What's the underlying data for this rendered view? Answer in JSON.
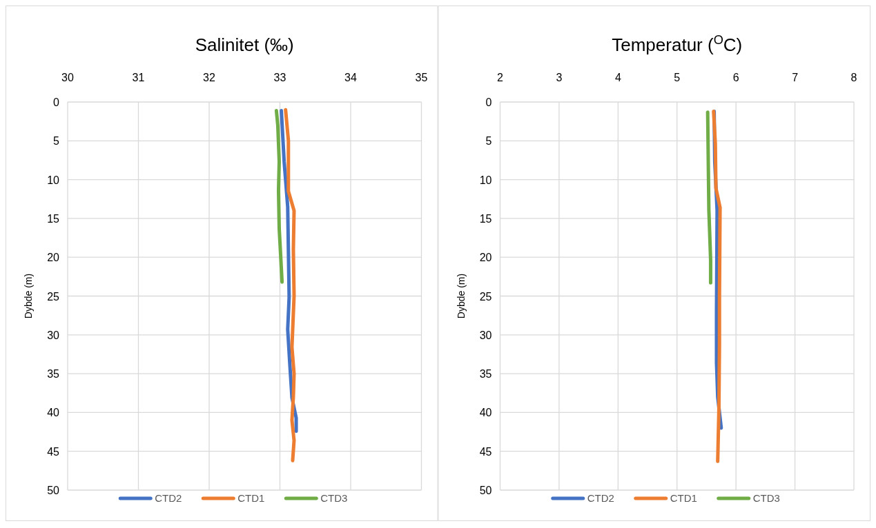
{
  "chart_data": [
    {
      "type": "line",
      "title": "Salinitet (‰)",
      "ylabel": "Dybde (m)",
      "xlim": [
        30,
        35
      ],
      "xticks": [
        30,
        31,
        32,
        33,
        34,
        35
      ],
      "ylim": [
        50,
        0
      ],
      "yticks": [
        0,
        5,
        10,
        15,
        20,
        25,
        30,
        35,
        40,
        45,
        50
      ],
      "grid": true,
      "legend": "bottom",
      "series": [
        {
          "name": "CTD2",
          "color": "#4472c4",
          "x": [
            33.02,
            33.06,
            33.11,
            33.12,
            33.13,
            33.13,
            33.11,
            33.14,
            33.17,
            33.23,
            33.23
          ],
          "values": [
            1.1,
            7.7,
            13.5,
            19.2,
            25,
            25.2,
            29.3,
            33.8,
            38.1,
            40.7,
            42.4
          ]
        },
        {
          "name": "CTD1",
          "color": "#ed7d31",
          "x": [
            33.08,
            33.12,
            33.12,
            33.2,
            33.19,
            33.2,
            33.17,
            33.2,
            33.19,
            33.17,
            33.2,
            33.18
          ],
          "values": [
            1,
            5,
            11.5,
            14,
            19,
            25,
            31.6,
            35,
            38,
            41,
            43.6,
            46.2
          ]
        },
        {
          "name": "CTD3",
          "color": "#70ad47",
          "x": [
            32.95,
            32.97,
            32.99,
            32.98,
            32.99,
            33.01,
            33.03
          ],
          "values": [
            1.1,
            3,
            7.7,
            11.4,
            16.3,
            19.7,
            23.2
          ]
        }
      ]
    },
    {
      "type": "line",
      "title": "Temperatur ($^{O}$C)",
      "ylabel": "Dybde (m)",
      "xlim": [
        2,
        8
      ],
      "xticks": [
        2,
        3,
        4,
        5,
        6,
        7,
        8
      ],
      "ylim": [
        50,
        0
      ],
      "yticks": [
        0,
        5,
        10,
        15,
        20,
        25,
        30,
        35,
        40,
        45,
        50
      ],
      "grid": true,
      "legend": "bottom",
      "series": [
        {
          "name": "CTD2",
          "color": "#4472c4",
          "x": [
            5.63,
            5.64,
            5.68,
            5.67,
            5.67,
            5.69,
            5.75
          ],
          "values": [
            1.2,
            7.7,
            14,
            27,
            33.6,
            38,
            42
          ]
        },
        {
          "name": "CTD1",
          "color": "#ed7d31",
          "x": [
            5.62,
            5.65,
            5.66,
            5.73,
            5.72,
            5.72,
            5.71,
            5.69
          ],
          "values": [
            1.2,
            5.4,
            11.1,
            13.6,
            25,
            31.2,
            39.7,
            46.3
          ]
        },
        {
          "name": "CTD3",
          "color": "#70ad47",
          "x": [
            5.52,
            5.54,
            5.57,
            5.57
          ],
          "values": [
            1.3,
            13.9,
            20.4,
            23.3
          ]
        }
      ]
    }
  ]
}
